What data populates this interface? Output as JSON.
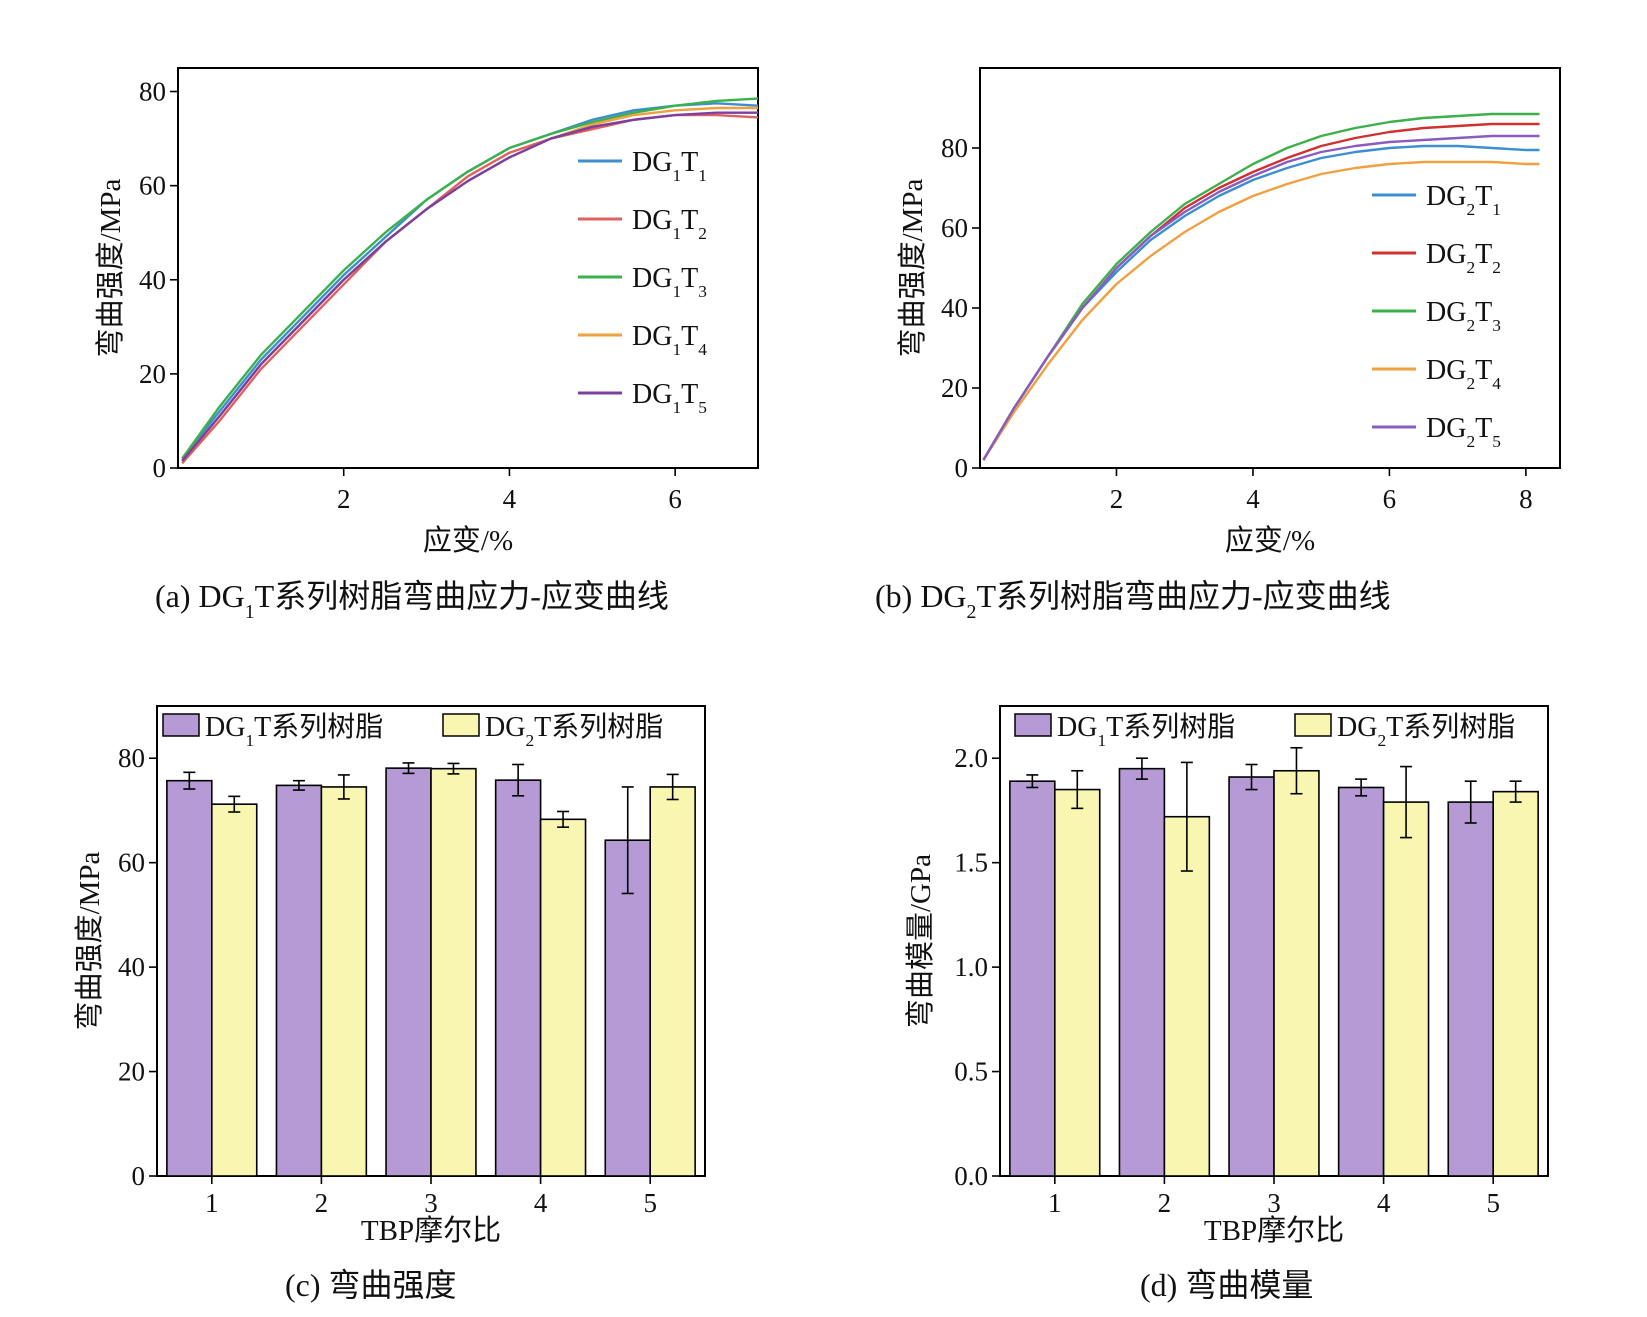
{
  "chart_data": [
    {
      "id": "a",
      "type": "line",
      "caption": {
        "prefix": "(a)",
        "text": "DG₁T系列树脂弯曲应力-应变曲线"
      },
      "xlabel": "应变/%",
      "ylabel": "弯曲强度/MPa",
      "xlim": [
        0,
        7
      ],
      "ylim": [
        0,
        85
      ],
      "xticks": [
        2,
        4,
        6
      ],
      "yticks": [
        0,
        20,
        40,
        60,
        80
      ],
      "legend_position": "center-right",
      "series": [
        {
          "name": "DG₁T₁",
          "color": "#3b8fd0",
          "x": [
            0.05,
            0.5,
            1,
            1.5,
            2,
            2.5,
            3,
            3.5,
            4,
            4.5,
            5,
            5.5,
            6,
            6.5,
            7
          ],
          "y": [
            2,
            12,
            23,
            32,
            41,
            49,
            57,
            63,
            68,
            71,
            74,
            76,
            77,
            77.5,
            77
          ]
        },
        {
          "name": "DG₁T₂",
          "color": "#e06060",
          "x": [
            0.05,
            0.5,
            1,
            1.5,
            2,
            2.5,
            3,
            3.5,
            4,
            4.5,
            5,
            5.5,
            6,
            6.5,
            7
          ],
          "y": [
            1,
            10,
            21,
            30,
            39,
            48,
            55,
            62,
            67,
            70,
            72,
            74,
            75,
            75,
            74.5
          ]
        },
        {
          "name": "DG₁T₃",
          "color": "#3cb04a",
          "x": [
            0.05,
            0.5,
            1,
            1.5,
            2,
            2.5,
            3,
            3.5,
            4,
            4.5,
            5,
            5.5,
            6,
            6.5,
            7
          ],
          "y": [
            2,
            13,
            24,
            33,
            42,
            50,
            57,
            63,
            68,
            71,
            73.5,
            75.5,
            77,
            78,
            78.5
          ]
        },
        {
          "name": "DG₁T₄",
          "color": "#f0a040",
          "x": [
            0.05,
            0.5,
            1,
            1.5,
            2,
            2.5,
            3,
            3.5,
            4,
            4.5,
            5,
            5.5,
            6,
            6.5,
            7
          ],
          "y": [
            1.5,
            11,
            22,
            31,
            40,
            48,
            55,
            61,
            66,
            70,
            73,
            75,
            76,
            76.5,
            76.5
          ]
        },
        {
          "name": "DG₁T₅",
          "color": "#7a3fa0",
          "x": [
            0.05,
            0.5,
            1,
            1.5,
            2,
            2.5,
            3,
            3.5,
            4,
            4.5,
            5,
            5.5,
            6,
            6.5,
            7
          ],
          "y": [
            1.5,
            11,
            22,
            31,
            40,
            48,
            55,
            61,
            66,
            70,
            72.5,
            74,
            75,
            75.5,
            75.5
          ]
        }
      ]
    },
    {
      "id": "b",
      "type": "line",
      "caption": {
        "prefix": "(b)",
        "text": "DG₂T系列树脂弯曲应力-应变曲线"
      },
      "xlabel": "应变/%",
      "ylabel": "弯曲强度/MPa",
      "xlim": [
        0,
        8.5
      ],
      "ylim": [
        0,
        100
      ],
      "xticks": [
        2,
        4,
        6,
        8
      ],
      "yticks": [
        0,
        20,
        40,
        60,
        80
      ],
      "legend_position": "center-right",
      "series": [
        {
          "name": "DG₂T₁",
          "color": "#3b8fd0",
          "x": [
            0.05,
            0.5,
            1,
            1.5,
            2,
            2.5,
            3,
            3.5,
            4,
            4.5,
            5,
            5.5,
            6,
            6.5,
            7,
            7.5,
            8,
            8.2
          ],
          "y": [
            2,
            15,
            28,
            40,
            49,
            57,
            63,
            68,
            72,
            75,
            77.5,
            79,
            80,
            80.5,
            80.5,
            80,
            79.5,
            79.5
          ]
        },
        {
          "name": "DG₂T₂",
          "color": "#d03030",
          "x": [
            0.05,
            0.5,
            1,
            1.5,
            2,
            2.5,
            3,
            3.5,
            4,
            4.5,
            5,
            5.5,
            6,
            6.5,
            7,
            7.5,
            8,
            8.2
          ],
          "y": [
            2,
            15,
            28,
            40,
            50,
            58,
            65,
            70,
            74,
            77.5,
            80.5,
            82.5,
            84,
            85,
            85.5,
            86,
            86,
            86
          ]
        },
        {
          "name": "DG₂T₃",
          "color": "#3cb04a",
          "x": [
            0.05,
            0.5,
            1,
            1.5,
            2,
            2.5,
            3,
            3.5,
            4,
            4.5,
            5,
            5.5,
            6,
            6.5,
            7,
            7.5,
            8,
            8.2
          ],
          "y": [
            2,
            15,
            28,
            41,
            51,
            59,
            66,
            71,
            76,
            80,
            83,
            85,
            86.5,
            87.5,
            88,
            88.5,
            88.5,
            88.5
          ]
        },
        {
          "name": "DG₂T₄",
          "color": "#f0a040",
          "x": [
            0.05,
            0.5,
            1,
            1.5,
            2,
            2.5,
            3,
            3.5,
            4,
            4.5,
            5,
            5.5,
            6,
            6.5,
            7,
            7.5,
            8,
            8.2
          ],
          "y": [
            2,
            14,
            26,
            37,
            46,
            53,
            59,
            64,
            68,
            71,
            73.5,
            75,
            76,
            76.5,
            76.5,
            76.5,
            76,
            76
          ]
        },
        {
          "name": "DG₂T₅",
          "color": "#8a5cc0",
          "x": [
            0.05,
            0.5,
            1,
            1.5,
            2,
            2.5,
            3,
            3.5,
            4,
            4.5,
            5,
            5.5,
            6,
            6.5,
            7,
            7.5,
            8,
            8.2
          ],
          "y": [
            2,
            15,
            28,
            40,
            50,
            58,
            64,
            69,
            73,
            76.5,
            79,
            80.5,
            81.5,
            82,
            82.5,
            83,
            83,
            83
          ]
        }
      ]
    },
    {
      "id": "c",
      "type": "bar",
      "caption": {
        "prefix": "(c)",
        "text": "弯曲强度"
      },
      "xlabel": "TBP摩尔比",
      "ylabel": "弯曲强度/MPa",
      "ylim": [
        0,
        90
      ],
      "yticks": [
        0,
        20,
        40,
        60,
        80
      ],
      "categories": [
        "1",
        "2",
        "3",
        "4",
        "5"
      ],
      "legend_position": "top",
      "series": [
        {
          "name": "DG₁T系列树脂",
          "color": "#b59ad6",
          "values": [
            75.7,
            74.8,
            78.1,
            75.8,
            64.3
          ],
          "errors": [
            1.6,
            0.9,
            1.0,
            3.0,
            10.2
          ]
        },
        {
          "name": "DG₂T系列树脂",
          "color": "#f8f6b0",
          "values": [
            71.2,
            74.5,
            78.0,
            68.3,
            74.5
          ],
          "errors": [
            1.5,
            2.3,
            1.0,
            1.5,
            2.4
          ]
        }
      ]
    },
    {
      "id": "d",
      "type": "bar",
      "caption": {
        "prefix": "(d)",
        "text": "弯曲模量"
      },
      "xlabel": "TBP摩尔比",
      "ylabel": "弯曲模量/GPa",
      "ylim": [
        0,
        2.25
      ],
      "yticks": [
        0.0,
        0.5,
        1.0,
        1.5,
        2.0
      ],
      "ytick_labels": [
        "0.0",
        "0.5",
        "1.0",
        "1.5",
        "2.0"
      ],
      "categories": [
        "1",
        "2",
        "3",
        "4",
        "5"
      ],
      "legend_position": "top",
      "series": [
        {
          "name": "DG₁T系列树脂",
          "color": "#b59ad6",
          "values": [
            1.89,
            1.95,
            1.91,
            1.86,
            1.79
          ],
          "errors": [
            0.03,
            0.05,
            0.06,
            0.04,
            0.1
          ]
        },
        {
          "name": "DG₂T系列树脂",
          "color": "#f8f6b0",
          "values": [
            1.85,
            1.72,
            1.94,
            1.79,
            1.84
          ],
          "errors": [
            0.09,
            0.26,
            0.11,
            0.17,
            0.05
          ]
        }
      ]
    }
  ]
}
